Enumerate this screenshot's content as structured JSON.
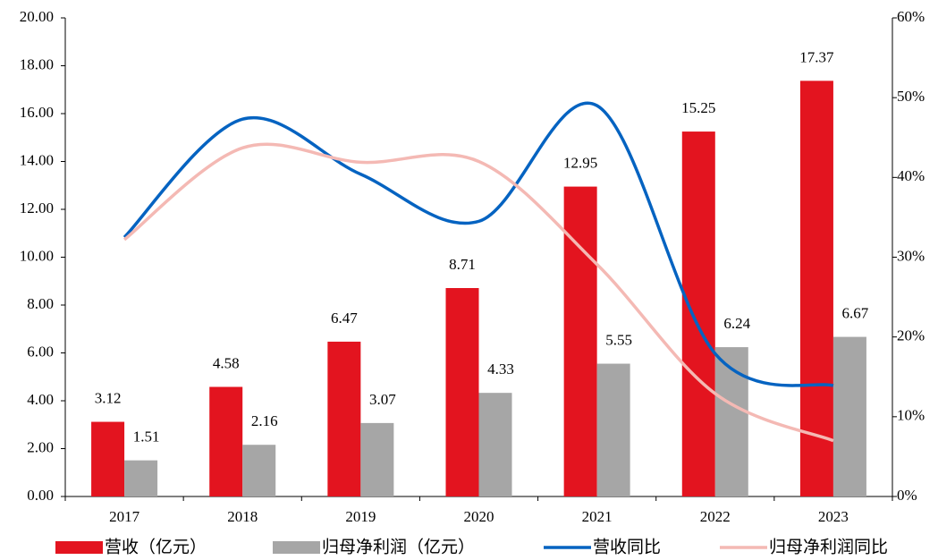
{
  "chart_data": {
    "type": "bar",
    "categories": [
      "2017",
      "2018",
      "2019",
      "2020",
      "2021",
      "2022",
      "2023"
    ],
    "series": [
      {
        "name": "营收（亿元）",
        "type": "bar",
        "color": "#e3141f",
        "values": [
          3.12,
          4.58,
          6.47,
          8.71,
          12.95,
          15.25,
          17.37
        ]
      },
      {
        "name": "归母净利润（亿元）",
        "type": "bar",
        "color": "#a6a6a6",
        "values": [
          1.51,
          2.16,
          3.07,
          4.33,
          5.55,
          6.24,
          6.67
        ]
      },
      {
        "name": "营收同比",
        "type": "line",
        "axis": "y2",
        "color": "#0563c1",
        "values": [
          32.5,
          47.3,
          40.4,
          34.5,
          49,
          17.9,
          13.9
        ]
      },
      {
        "name": "归母净利润同比",
        "type": "line",
        "axis": "y2",
        "color": "#f4b9b4",
        "values": [
          32.2,
          43.7,
          41.9,
          42,
          29.1,
          12.9,
          7
        ]
      }
    ],
    "ylim": [
      0,
      20
    ],
    "yticks": [
      {
        "value": 0,
        "label": "0.00"
      },
      {
        "value": 2,
        "label": "2.00"
      },
      {
        "value": 4,
        "label": "4.00"
      },
      {
        "value": 6,
        "label": "6.00"
      },
      {
        "value": 8,
        "label": "8.00"
      },
      {
        "value": 10,
        "label": "10.00"
      },
      {
        "value": 12,
        "label": "12.00"
      },
      {
        "value": 14,
        "label": "14.00"
      },
      {
        "value": 16,
        "label": "16.00"
      },
      {
        "value": 18,
        "label": "18.00"
      },
      {
        "value": 20,
        "label": "20.00"
      }
    ],
    "y2lim": [
      0,
      60
    ],
    "y2ticks": [
      {
        "value": 0,
        "label": "0%"
      },
      {
        "value": 10,
        "label": "10%"
      },
      {
        "value": 20,
        "label": "20%"
      },
      {
        "value": 30,
        "label": "30%"
      },
      {
        "value": 40,
        "label": "40%"
      },
      {
        "value": 50,
        "label": "50%"
      },
      {
        "value": 60,
        "label": "60%"
      }
    ],
    "legend": "bottom",
    "grid": false,
    "data_labels": true
  }
}
